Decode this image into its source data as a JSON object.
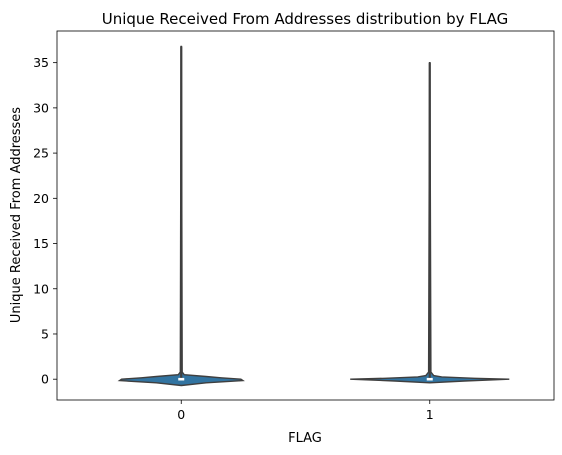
{
  "chart_data": {
    "type": "violin",
    "title": "Unique Received From Addresses distribution by FLAG",
    "xlabel": "FLAG",
    "ylabel": "Unique Received From Addresses",
    "categories": [
      "0",
      "1"
    ],
    "ylim": [
      -2.3,
      38.5
    ],
    "yticks": [
      0,
      5,
      10,
      15,
      20,
      25,
      30,
      35
    ],
    "grid": false,
    "violins": [
      {
        "category": "0",
        "min": 0,
        "max": 36.8,
        "median": 0,
        "q1": 0,
        "q3": 0,
        "profile": [
          [
            -0.7,
            0.0
          ],
          [
            -0.4,
            0.25
          ],
          [
            -0.15,
            0.62
          ],
          [
            0.0,
            0.6
          ],
          [
            0.15,
            0.4
          ],
          [
            0.3,
            0.25
          ],
          [
            0.5,
            0.03
          ],
          [
            0.8,
            0.01
          ],
          [
            36.8,
            0.002
          ]
        ]
      },
      {
        "category": "1",
        "min": 0,
        "max": 35.0,
        "median": 0,
        "q1": 0,
        "q3": 0,
        "profile": [
          [
            -0.4,
            0.0
          ],
          [
            -0.2,
            0.35
          ],
          [
            0.0,
            0.8
          ],
          [
            0.1,
            0.45
          ],
          [
            0.25,
            0.12
          ],
          [
            0.4,
            0.04
          ],
          [
            0.8,
            0.012
          ],
          [
            35.0,
            0.002
          ]
        ]
      }
    ],
    "colors": {
      "fill": "#3274a1",
      "edge": "#3f3f3f",
      "median": "#ffffff",
      "axis": "#000000"
    }
  }
}
